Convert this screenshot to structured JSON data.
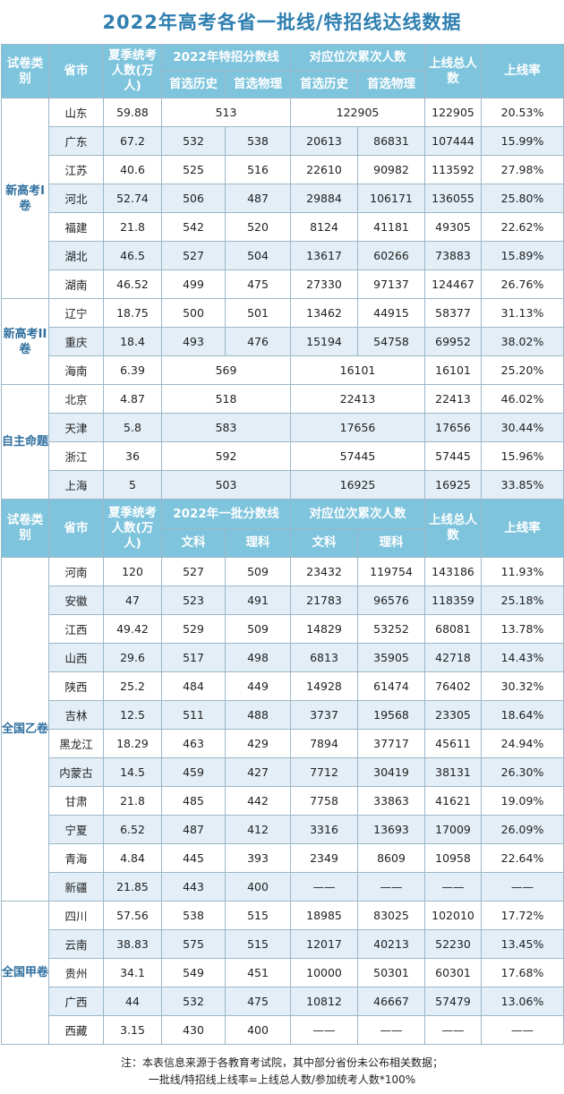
{
  "title": "2022年高考各省一批线/特招线达线数据",
  "header1": {
    "type": "试卷类别",
    "province": "省市",
    "candidates": "夏季统考人数(万人)",
    "score_line": "2022年特招分数线",
    "rank": "对应位次累次人数",
    "total": "上线总人数",
    "rate": "上线率",
    "sub_a": "首选历史",
    "sub_b": "首选物理",
    "sub_c": "首选历史",
    "sub_d": "首选物理"
  },
  "header2": {
    "type": "试卷类别",
    "province": "省市",
    "candidates": "夏季统考人数(万人)",
    "score_line": "2022年一批分数线",
    "rank": "对应位次累次人数",
    "total": "上线总人数",
    "rate": "上线率",
    "sub_a": "文科",
    "sub_b": "理科",
    "sub_c": "文科",
    "sub_d": "理科"
  },
  "groups": {
    "g1": "新高考I卷",
    "g2": "新高考II卷",
    "g3": "自主命题",
    "g4": "全国乙卷",
    "g5": "全国甲卷"
  },
  "rows": [
    {
      "p": "山东",
      "n": "59.88",
      "s": "513",
      "r": "122905",
      "t": "122905",
      "rate": "20.53%"
    },
    {
      "p": "广东",
      "n": "67.2",
      "s1": "532",
      "s2": "538",
      "r1": "20613",
      "r2": "86831",
      "t": "107444",
      "rate": "15.99%"
    },
    {
      "p": "江苏",
      "n": "40.6",
      "s1": "525",
      "s2": "516",
      "r1": "22610",
      "r2": "90982",
      "t": "113592",
      "rate": "27.98%"
    },
    {
      "p": "河北",
      "n": "52.74",
      "s1": "506",
      "s2": "487",
      "r1": "29884",
      "r2": "106171",
      "t": "136055",
      "rate": "25.80%"
    },
    {
      "p": "福建",
      "n": "21.8",
      "s1": "542",
      "s2": "520",
      "r1": "8124",
      "r2": "41181",
      "t": "49305",
      "rate": "22.62%"
    },
    {
      "p": "湖北",
      "n": "46.5",
      "s1": "527",
      "s2": "504",
      "r1": "13617",
      "r2": "60266",
      "t": "73883",
      "rate": "15.89%"
    },
    {
      "p": "湖南",
      "n": "46.52",
      "s1": "499",
      "s2": "475",
      "r1": "27330",
      "r2": "97137",
      "t": "124467",
      "rate": "26.76%"
    },
    {
      "p": "辽宁",
      "n": "18.75",
      "s1": "500",
      "s2": "501",
      "r1": "13462",
      "r2": "44915",
      "t": "58377",
      "rate": "31.13%"
    },
    {
      "p": "重庆",
      "n": "18.4",
      "s1": "493",
      "s2": "476",
      "r1": "15194",
      "r2": "54758",
      "t": "69952",
      "rate": "38.02%"
    },
    {
      "p": "海南",
      "n": "6.39",
      "s": "569",
      "r": "16101",
      "t": "16101",
      "rate": "25.20%"
    },
    {
      "p": "北京",
      "n": "4.87",
      "s": "518",
      "r": "22413",
      "t": "22413",
      "rate": "46.02%"
    },
    {
      "p": "天津",
      "n": "5.8",
      "s": "583",
      "r": "17656",
      "t": "17656",
      "rate": "30.44%"
    },
    {
      "p": "浙江",
      "n": "36",
      "s": "592",
      "r": "57445",
      "t": "57445",
      "rate": "15.96%"
    },
    {
      "p": "上海",
      "n": "5",
      "s": "503",
      "r": "16925",
      "t": "16925",
      "rate": "33.85%"
    },
    {
      "p": "河南",
      "n": "120",
      "s1": "527",
      "s2": "509",
      "r1": "23432",
      "r2": "119754",
      "t": "143186",
      "rate": "11.93%"
    },
    {
      "p": "安徽",
      "n": "47",
      "s1": "523",
      "s2": "491",
      "r1": "21783",
      "r2": "96576",
      "t": "118359",
      "rate": "25.18%"
    },
    {
      "p": "江西",
      "n": "49.42",
      "s1": "529",
      "s2": "509",
      "r1": "14829",
      "r2": "53252",
      "t": "68081",
      "rate": "13.78%"
    },
    {
      "p": "山西",
      "n": "29.6",
      "s1": "517",
      "s2": "498",
      "r1": "6813",
      "r2": "35905",
      "t": "42718",
      "rate": "14.43%"
    },
    {
      "p": "陕西",
      "n": "25.2",
      "s1": "484",
      "s2": "449",
      "r1": "14928",
      "r2": "61474",
      "t": "76402",
      "rate": "30.32%"
    },
    {
      "p": "吉林",
      "n": "12.5",
      "s1": "511",
      "s2": "488",
      "r1": "3737",
      "r2": "19568",
      "t": "23305",
      "rate": "18.64%"
    },
    {
      "p": "黑龙江",
      "n": "18.29",
      "s1": "463",
      "s2": "429",
      "r1": "7894",
      "r2": "37717",
      "t": "45611",
      "rate": "24.94%"
    },
    {
      "p": "内蒙古",
      "n": "14.5",
      "s1": "459",
      "s2": "427",
      "r1": "7712",
      "r2": "30419",
      "t": "38131",
      "rate": "26.30%"
    },
    {
      "p": "甘肃",
      "n": "21.8",
      "s1": "485",
      "s2": "442",
      "r1": "7758",
      "r2": "33863",
      "t": "41621",
      "rate": "19.09%"
    },
    {
      "p": "宁夏",
      "n": "6.52",
      "s1": "487",
      "s2": "412",
      "r1": "3316",
      "r2": "13693",
      "t": "17009",
      "rate": "26.09%"
    },
    {
      "p": "青海",
      "n": "4.84",
      "s1": "445",
      "s2": "393",
      "r1": "2349",
      "r2": "8609",
      "t": "10958",
      "rate": "22.64%"
    },
    {
      "p": "新疆",
      "n": "21.85",
      "s1": "443",
      "s2": "400",
      "r1": "——",
      "r2": "——",
      "t": "——",
      "rate": "——"
    },
    {
      "p": "四川",
      "n": "57.56",
      "s1": "538",
      "s2": "515",
      "r1": "18985",
      "r2": "83025",
      "t": "102010",
      "rate": "17.72%"
    },
    {
      "p": "云南",
      "n": "38.83",
      "s1": "575",
      "s2": "515",
      "r1": "12017",
      "r2": "40213",
      "t": "52230",
      "rate": "13.45%"
    },
    {
      "p": "贵州",
      "n": "34.1",
      "s1": "549",
      "s2": "451",
      "r1": "10000",
      "r2": "50301",
      "t": "60301",
      "rate": "17.68%"
    },
    {
      "p": "广西",
      "n": "44",
      "s1": "532",
      "s2": "475",
      "r1": "10812",
      "r2": "46667",
      "t": "57479",
      "rate": "13.06%"
    },
    {
      "p": "西藏",
      "n": "3.15",
      "s1": "430",
      "s2": "400",
      "r1": "——",
      "r2": "——",
      "t": "——",
      "rate": "——"
    }
  ],
  "note": {
    "line1": "注：本表信息来源于各教育考试院，其中部分省份未公布相关数据；",
    "line2": "一批线/特招线上线率=上线总人数/参加统考人数*100%"
  }
}
